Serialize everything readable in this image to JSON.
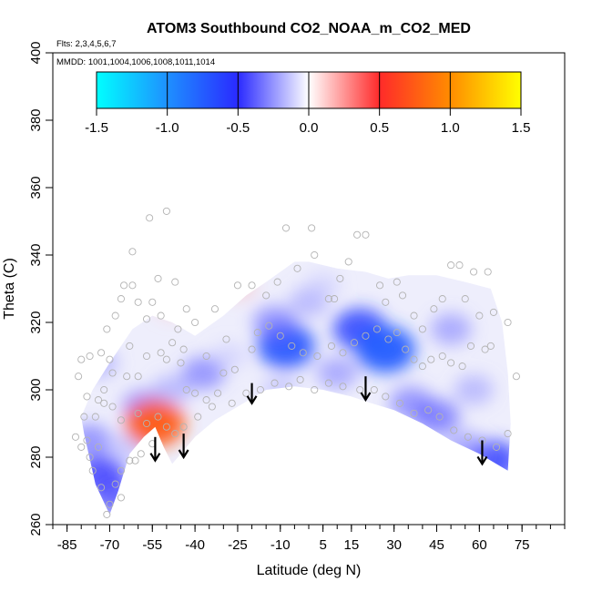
{
  "chart_data": {
    "type": "heatmap",
    "title": "ATOM3 Southbound CO2_NOAA_m_CO2_MED",
    "flights_label": "Flts: 2,3,4,5,6,7",
    "mmdd_label": "MMDD: 1001,1004,1006,1008,1011,1014",
    "xlabel": "Latitude (deg N)",
    "ylabel": "Theta (C)",
    "xlim": [
      -90,
      90
    ],
    "ylim": [
      260,
      400
    ],
    "x_ticks": [
      -85,
      -70,
      -55,
      -40,
      -25,
      -10,
      5,
      15,
      30,
      45,
      60,
      75
    ],
    "x_minor_step": 5,
    "y_ticks": [
      260,
      280,
      300,
      320,
      340,
      360,
      380,
      400
    ],
    "colorbar": {
      "range": [
        -1.5,
        1.5
      ],
      "ticks": [
        "-1.5",
        "-1.0",
        "-0.5",
        "0.0",
        "0.5",
        "1.0",
        "1.5"
      ],
      "stops": [
        {
          "v": -1.5,
          "color": "#00ffff"
        },
        {
          "v": -1.0,
          "color": "#1e90ff"
        },
        {
          "v": -0.5,
          "color": "#2a2aff"
        },
        {
          "v": 0.0,
          "color": "#ffffff"
        },
        {
          "v": 0.5,
          "color": "#ff2a2a"
        },
        {
          "v": 1.0,
          "color": "#ff8c00"
        },
        {
          "v": 1.5,
          "color": "#ffff00"
        }
      ]
    },
    "field_outline": [
      [
        -79,
        287
      ],
      [
        -75,
        272
      ],
      [
        -70,
        263
      ],
      [
        -67,
        270
      ],
      [
        -63,
        281
      ],
      [
        -58,
        286
      ],
      [
        -54,
        289
      ],
      [
        -51,
        283
      ],
      [
        -48,
        278
      ],
      [
        -44,
        282
      ],
      [
        -40,
        286
      ],
      [
        -33,
        291
      ],
      [
        -25,
        295
      ],
      [
        -15,
        300
      ],
      [
        -5,
        301
      ],
      [
        5,
        300
      ],
      [
        15,
        298
      ],
      [
        22,
        296
      ],
      [
        30,
        294
      ],
      [
        40,
        290
      ],
      [
        50,
        285
      ],
      [
        60,
        281
      ],
      [
        70,
        276
      ],
      [
        71,
        290
      ],
      [
        70,
        305
      ],
      [
        68,
        320
      ],
      [
        64,
        330
      ],
      [
        55,
        332
      ],
      [
        45,
        334
      ],
      [
        35,
        334
      ],
      [
        28,
        333
      ],
      [
        20,
        335
      ],
      [
        10,
        336
      ],
      [
        0,
        338
      ],
      [
        -5,
        338
      ],
      [
        -10,
        335
      ],
      [
        -15,
        332
      ],
      [
        -22,
        328
      ],
      [
        -30,
        322
      ],
      [
        -40,
        316
      ],
      [
        -48,
        320
      ],
      [
        -55,
        322
      ],
      [
        -62,
        318
      ],
      [
        -70,
        308
      ],
      [
        -76,
        300
      ],
      [
        -80,
        292
      ]
    ],
    "anomalies": [
      {
        "lat": 18,
        "theta": 318,
        "value": -0.6
      },
      {
        "lat": 27,
        "theta": 312,
        "value": -0.75
      },
      {
        "lat": -8,
        "theta": 313,
        "value": -0.7
      },
      {
        "lat": -12,
        "theta": 320,
        "value": -0.35
      },
      {
        "lat": 50,
        "theta": 318,
        "value": -0.3
      },
      {
        "lat": 36,
        "theta": 296,
        "value": -0.35
      },
      {
        "lat": 45,
        "theta": 292,
        "value": -0.4
      },
      {
        "lat": 65,
        "theta": 279,
        "value": -0.55
      },
      {
        "lat": 55,
        "theta": 283,
        "value": -0.3
      },
      {
        "lat": -37,
        "theta": 305,
        "value": -0.35
      },
      {
        "lat": -58,
        "theta": 295,
        "value": -0.35
      },
      {
        "lat": -48,
        "theta": 300,
        "value": -0.25
      },
      {
        "lat": -73,
        "theta": 275,
        "value": -0.5
      },
      {
        "lat": -68,
        "theta": 268,
        "value": -0.45
      },
      {
        "lat": -77,
        "theta": 285,
        "value": -0.35
      },
      {
        "lat": -74,
        "theta": 308,
        "value": -0.25
      },
      {
        "lat": -64,
        "theta": 283,
        "value": -0.2
      },
      {
        "lat": -10,
        "theta": 300,
        "value": -0.2
      },
      {
        "lat": 10,
        "theta": 305,
        "value": -0.3
      },
      {
        "lat": 0,
        "theta": 326,
        "value": -0.25
      },
      {
        "lat": -28,
        "theta": 310,
        "value": -0.15
      },
      {
        "lat": -52,
        "theta": 331,
        "value": 0.2
      },
      {
        "lat": -48,
        "theta": 325,
        "value": 0.15
      },
      {
        "lat": -54,
        "theta": 290,
        "value": 0.75
      },
      {
        "lat": -25,
        "theta": 331,
        "value": 0.18
      },
      {
        "lat": 5,
        "theta": 331,
        "value": -0.15
      },
      {
        "lat": 58,
        "theta": 300,
        "value": -0.25
      }
    ],
    "sample_points": [
      [
        -81,
        304
      ],
      [
        -80,
        309
      ],
      [
        -77,
        310
      ],
      [
        -73,
        311
      ],
      [
        -70,
        309
      ],
      [
        -69,
        305
      ],
      [
        -64,
        304
      ],
      [
        -60,
        304
      ],
      [
        -57,
        310
      ],
      [
        -52,
        311
      ],
      [
        -50,
        309
      ],
      [
        -48,
        314
      ],
      [
        -45,
        308
      ],
      [
        -43,
        300
      ],
      [
        -40,
        299
      ],
      [
        -36,
        297
      ],
      [
        -32,
        299
      ],
      [
        -30,
        305
      ],
      [
        -26,
        306
      ],
      [
        -20,
        312
      ],
      [
        -18,
        317
      ],
      [
        -14,
        319
      ],
      [
        -10,
        316
      ],
      [
        -6,
        313
      ],
      [
        -2,
        311
      ],
      [
        3,
        310
      ],
      [
        8,
        313
      ],
      [
        12,
        311
      ],
      [
        16,
        314
      ],
      [
        20,
        316
      ],
      [
        24,
        318
      ],
      [
        28,
        315
      ],
      [
        31,
        317
      ],
      [
        34,
        312
      ],
      [
        37,
        309
      ],
      [
        40,
        307
      ],
      [
        43,
        309
      ],
      [
        47,
        310
      ],
      [
        50,
        308
      ],
      [
        54,
        307
      ],
      [
        57,
        313
      ],
      [
        62,
        312
      ],
      [
        -78,
        298
      ],
      [
        -75,
        292
      ],
      [
        -72,
        296
      ],
      [
        -69,
        295
      ],
      [
        -66,
        291
      ],
      [
        -60,
        293
      ],
      [
        -57,
        290
      ],
      [
        -53,
        292
      ],
      [
        -50,
        289
      ],
      [
        -47,
        287
      ],
      [
        -44,
        289
      ],
      [
        -39,
        292
      ],
      [
        -34,
        295
      ],
      [
        -27,
        296
      ],
      [
        -22,
        299
      ],
      [
        -17,
        300
      ],
      [
        -12,
        302
      ],
      [
        -7,
        301
      ],
      [
        -3,
        303
      ],
      [
        2,
        300
      ],
      [
        7,
        302
      ],
      [
        12,
        301
      ],
      [
        18,
        300
      ],
      [
        23,
        300
      ],
      [
        27,
        298
      ],
      [
        32,
        296
      ],
      [
        37,
        293
      ],
      [
        42,
        294
      ],
      [
        46,
        292
      ],
      [
        51,
        288
      ],
      [
        56,
        286
      ],
      [
        61,
        285
      ],
      [
        66,
        283
      ],
      [
        70,
        287
      ],
      [
        -82,
        286
      ],
      [
        -80,
        283
      ],
      [
        -77,
        280
      ],
      [
        -76,
        276
      ],
      [
        -73,
        271
      ],
      [
        -70,
        266
      ],
      [
        -68,
        272
      ],
      [
        -66,
        276
      ],
      [
        -63,
        279
      ],
      [
        -59,
        281
      ],
      [
        -55,
        284
      ],
      [
        -71,
        263
      ],
      [
        -66,
        268
      ],
      [
        -61,
        279
      ],
      [
        -74,
        283
      ],
      [
        -78,
        285
      ],
      [
        -57,
        321
      ],
      [
        -55,
        326
      ],
      [
        -52,
        322
      ],
      [
        -46,
        318
      ],
      [
        -43,
        324
      ],
      [
        -40,
        320
      ],
      [
        -53,
        333
      ],
      [
        -60,
        326
      ],
      [
        -62,
        331
      ],
      [
        -56,
        351
      ],
      [
        -50,
        353
      ],
      [
        -62,
        341
      ],
      [
        -47,
        332
      ],
      [
        -25,
        331
      ],
      [
        -20,
        331
      ],
      [
        -33,
        324
      ],
      [
        -8,
        348
      ],
      [
        1,
        348
      ],
      [
        2,
        340
      ],
      [
        7,
        327
      ],
      [
        17,
        346
      ],
      [
        20,
        346
      ],
      [
        25,
        331
      ],
      [
        27,
        326
      ],
      [
        31,
        332
      ],
      [
        33,
        328
      ],
      [
        37,
        322
      ],
      [
        40,
        318
      ],
      [
        44,
        324
      ],
      [
        47,
        327
      ],
      [
        50,
        337
      ],
      [
        53,
        337
      ],
      [
        58,
        335
      ],
      [
        63,
        335
      ],
      [
        65,
        323
      ],
      [
        70,
        320
      ],
      [
        73,
        304
      ],
      [
        64,
        313
      ],
      [
        60,
        322
      ],
      [
        55,
        327
      ],
      [
        14,
        338
      ],
      [
        11,
        333
      ],
      [
        9,
        327
      ],
      [
        -4,
        336
      ],
      [
        -11,
        332
      ],
      [
        -15,
        328
      ],
      [
        -29,
        315
      ],
      [
        -36,
        310
      ],
      [
        -44,
        312
      ],
      [
        -71,
        318
      ],
      [
        -68,
        322
      ],
      [
        -66,
        327
      ],
      [
        -65,
        331
      ],
      [
        -63,
        313
      ],
      [
        -72,
        300
      ],
      [
        -74,
        297
      ],
      [
        -79,
        292
      ]
    ],
    "arrows": [
      {
        "lat": -54,
        "theta_top": 286,
        "theta_bottom": 279
      },
      {
        "lat": -44,
        "theta_top": 287,
        "theta_bottom": 280
      },
      {
        "lat": -20,
        "theta_top": 302,
        "theta_bottom": 296
      },
      {
        "lat": 20,
        "theta_top": 304,
        "theta_bottom": 297
      },
      {
        "lat": 61,
        "theta_top": 285,
        "theta_bottom": 278
      }
    ]
  }
}
